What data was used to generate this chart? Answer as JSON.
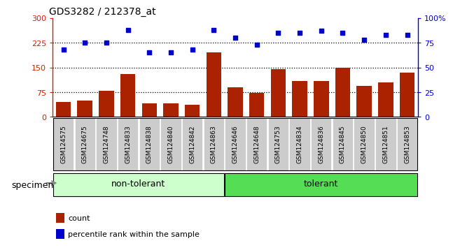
{
  "title": "GDS3282 / 212378_at",
  "categories": [
    "GSM124575",
    "GSM124675",
    "GSM124748",
    "GSM124833",
    "GSM124838",
    "GSM124840",
    "GSM124842",
    "GSM124863",
    "GSM124646",
    "GSM124648",
    "GSM124753",
    "GSM124834",
    "GSM124836",
    "GSM124845",
    "GSM124850",
    "GSM124851",
    "GSM124853"
  ],
  "bar_values": [
    45,
    50,
    80,
    130,
    42,
    42,
    38,
    195,
    90,
    72,
    145,
    110,
    110,
    150,
    95,
    105,
    135
  ],
  "scatter_values": [
    68,
    75,
    75,
    88,
    65,
    65,
    68,
    88,
    80,
    73,
    85,
    85,
    87,
    85,
    78,
    83,
    83
  ],
  "groups": [
    {
      "label": "non-tolerant",
      "start": 0,
      "end": 7,
      "color": "#ccffcc"
    },
    {
      "label": "tolerant",
      "start": 8,
      "end": 16,
      "color": "#55dd55"
    }
  ],
  "bar_color": "#aa2200",
  "scatter_color": "#0000cc",
  "ylim_left": [
    0,
    300
  ],
  "ylim_right": [
    0,
    100
  ],
  "yticks_left": [
    0,
    75,
    150,
    225,
    300
  ],
  "yticks_right": [
    0,
    25,
    50,
    75,
    100
  ],
  "ytick_labels_right": [
    "0",
    "25",
    "50",
    "75",
    "100%"
  ],
  "hlines": [
    75,
    150,
    225
  ],
  "specimen_label": "specimen",
  "legend_bar_label": "count",
  "legend_scatter_label": "percentile rank within the sample",
  "tick_bg_color": "#cccccc",
  "left_axis_color": "#cc2200",
  "right_axis_color": "#0000cc"
}
